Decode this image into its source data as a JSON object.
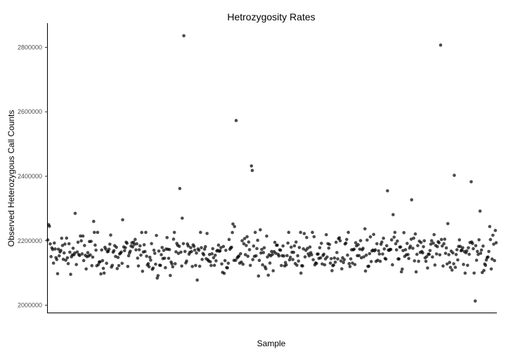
{
  "chart_data": {
    "type": "scatter",
    "title": "Hetrozygosity Rates",
    "xlabel": "Sample",
    "ylabel": "Observed Heterozygous Call Counts",
    "ylim": [
      1975000,
      2875000
    ],
    "xlim": [
      0,
      557
    ],
    "yticks": [
      2000000,
      2200000,
      2400000,
      2600000,
      2800000
    ],
    "ytick_labels": [
      "2000000",
      "2200000",
      "2400000",
      "2600000",
      "2800000"
    ],
    "x_ticks_shown": false,
    "grid": false,
    "point_color": "#000000",
    "n_typical_points": 550,
    "outliers": [
      {
        "x": 1,
        "y": 2250000
      },
      {
        "x": 2,
        "y": 2245000
      },
      {
        "x": 34,
        "y": 2285000
      },
      {
        "x": 57,
        "y": 2260000
      },
      {
        "x": 93,
        "y": 2265000
      },
      {
        "x": 164,
        "y": 2362000
      },
      {
        "x": 167,
        "y": 2270000
      },
      {
        "x": 169,
        "y": 2836000
      },
      {
        "x": 230,
        "y": 2252000
      },
      {
        "x": 232,
        "y": 2244000
      },
      {
        "x": 234,
        "y": 2573000
      },
      {
        "x": 253,
        "y": 2432000
      },
      {
        "x": 254,
        "y": 2418000
      },
      {
        "x": 264,
        "y": 2234000
      },
      {
        "x": 314,
        "y": 2226000
      },
      {
        "x": 394,
        "y": 2237000
      },
      {
        "x": 422,
        "y": 2355000
      },
      {
        "x": 429,
        "y": 2281000
      },
      {
        "x": 452,
        "y": 2327000
      },
      {
        "x": 488,
        "y": 2807000
      },
      {
        "x": 497,
        "y": 2253000
      },
      {
        "x": 505,
        "y": 2403000
      },
      {
        "x": 526,
        "y": 2383000
      },
      {
        "x": 531,
        "y": 2013000
      },
      {
        "x": 537,
        "y": 2292000
      },
      {
        "x": 549,
        "y": 2244000
      },
      {
        "x": 556,
        "y": 2232000
      }
    ]
  }
}
